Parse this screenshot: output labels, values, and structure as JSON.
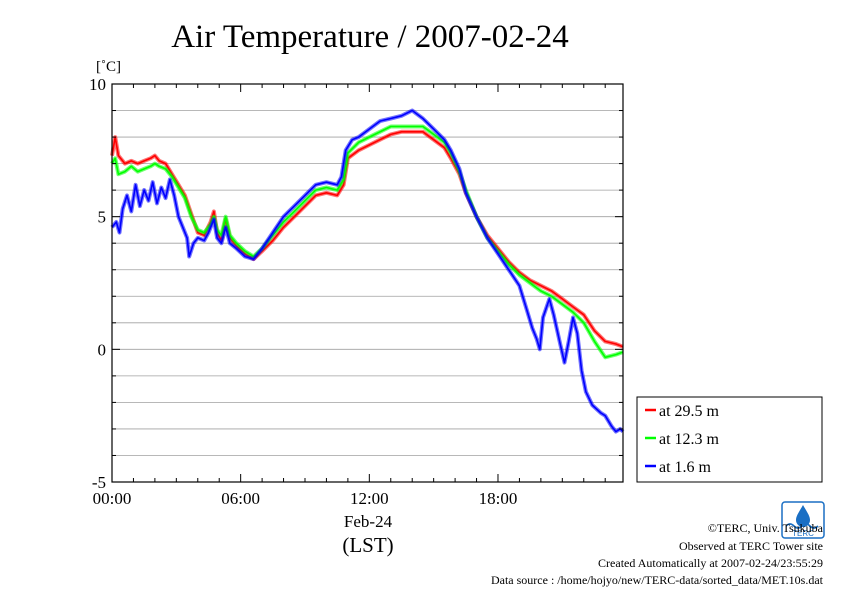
{
  "chart_data": {
    "type": "line",
    "title": "Air Temperature / 2007-02-24",
    "y_unit": "[˚C]",
    "ylim": [
      -5,
      10
    ],
    "y_ticks": [
      {
        "value": 10,
        "label": "10"
      },
      {
        "value": 5,
        "label": "5"
      },
      {
        "value": 0,
        "label": "0"
      },
      {
        "value": -5,
        "label": "-5"
      }
    ],
    "xlim": [
      0,
      23.83
    ],
    "x_ticks": [
      {
        "value": 0,
        "label": "00:00"
      },
      {
        "value": 6,
        "label": "06:00"
      },
      {
        "value": 12,
        "label": "12:00"
      },
      {
        "value": 18,
        "label": "18:00"
      }
    ],
    "x_date_label": "Feb-24",
    "x_tz_label": "(LST)",
    "grid": true,
    "legend_position": "right-bottom-outside",
    "series": [
      {
        "name": "at 29.5 m",
        "color": "#ff0000",
        "points": [
          [
            0,
            7.3
          ],
          [
            0.15,
            8.0
          ],
          [
            0.3,
            7.3
          ],
          [
            0.6,
            7.0
          ],
          [
            0.9,
            7.1
          ],
          [
            1.2,
            7.0
          ],
          [
            1.5,
            7.1
          ],
          [
            1.8,
            7.2
          ],
          [
            2.0,
            7.3
          ],
          [
            2.2,
            7.1
          ],
          [
            2.5,
            7.0
          ],
          [
            2.8,
            6.6
          ],
          [
            3.1,
            6.2
          ],
          [
            3.4,
            5.8
          ],
          [
            3.7,
            5.1
          ],
          [
            4.0,
            4.4
          ],
          [
            4.3,
            4.3
          ],
          [
            4.6,
            4.8
          ],
          [
            4.75,
            5.2
          ],
          [
            4.9,
            4.4
          ],
          [
            5.1,
            4.1
          ],
          [
            5.3,
            4.9
          ],
          [
            5.5,
            4.2
          ],
          [
            5.8,
            3.9
          ],
          [
            6.2,
            3.6
          ],
          [
            6.6,
            3.4
          ],
          [
            7.0,
            3.7
          ],
          [
            7.5,
            4.1
          ],
          [
            8.0,
            4.6
          ],
          [
            8.5,
            5.0
          ],
          [
            9.0,
            5.4
          ],
          [
            9.5,
            5.8
          ],
          [
            10.0,
            5.9
          ],
          [
            10.5,
            5.8
          ],
          [
            10.8,
            6.2
          ],
          [
            11.0,
            7.2
          ],
          [
            11.5,
            7.5
          ],
          [
            12.0,
            7.7
          ],
          [
            12.5,
            7.9
          ],
          [
            13.0,
            8.1
          ],
          [
            13.5,
            8.2
          ],
          [
            14.0,
            8.2
          ],
          [
            14.5,
            8.2
          ],
          [
            15.0,
            7.9
          ],
          [
            15.5,
            7.6
          ],
          [
            15.8,
            7.2
          ],
          [
            16.2,
            6.6
          ],
          [
            16.5,
            5.9
          ],
          [
            17.0,
            5.0
          ],
          [
            17.5,
            4.3
          ],
          [
            18.0,
            3.8
          ],
          [
            18.5,
            3.3
          ],
          [
            19.0,
            2.9
          ],
          [
            19.5,
            2.6
          ],
          [
            20.0,
            2.4
          ],
          [
            20.5,
            2.2
          ],
          [
            21.0,
            1.9
          ],
          [
            21.5,
            1.6
          ],
          [
            22.0,
            1.3
          ],
          [
            22.5,
            0.7
          ],
          [
            23.0,
            0.3
          ],
          [
            23.5,
            0.2
          ],
          [
            23.83,
            0.1
          ]
        ]
      },
      {
        "name": "at 12.3 m",
        "color": "#00ff00",
        "points": [
          [
            0,
            7.0
          ],
          [
            0.15,
            7.2
          ],
          [
            0.3,
            6.6
          ],
          [
            0.6,
            6.7
          ],
          [
            0.9,
            6.9
          ],
          [
            1.2,
            6.7
          ],
          [
            1.5,
            6.8
          ],
          [
            1.8,
            6.9
          ],
          [
            2.0,
            7.0
          ],
          [
            2.2,
            6.9
          ],
          [
            2.5,
            6.8
          ],
          [
            2.8,
            6.5
          ],
          [
            3.1,
            6.1
          ],
          [
            3.4,
            5.7
          ],
          [
            3.7,
            5.0
          ],
          [
            4.0,
            4.5
          ],
          [
            4.3,
            4.4
          ],
          [
            4.6,
            4.7
          ],
          [
            4.75,
            5.0
          ],
          [
            4.9,
            4.5
          ],
          [
            5.1,
            4.3
          ],
          [
            5.3,
            5.0
          ],
          [
            5.5,
            4.3
          ],
          [
            5.8,
            4.0
          ],
          [
            6.2,
            3.7
          ],
          [
            6.6,
            3.5
          ],
          [
            7.0,
            3.8
          ],
          [
            7.5,
            4.3
          ],
          [
            8.0,
            4.8
          ],
          [
            8.5,
            5.2
          ],
          [
            9.0,
            5.6
          ],
          [
            9.5,
            6.0
          ],
          [
            10.0,
            6.1
          ],
          [
            10.5,
            6.0
          ],
          [
            10.8,
            6.4
          ],
          [
            11.0,
            7.4
          ],
          [
            11.5,
            7.8
          ],
          [
            12.0,
            8.0
          ],
          [
            12.5,
            8.2
          ],
          [
            13.0,
            8.4
          ],
          [
            13.5,
            8.4
          ],
          [
            14.0,
            8.4
          ],
          [
            14.5,
            8.4
          ],
          [
            15.0,
            8.1
          ],
          [
            15.5,
            7.8
          ],
          [
            15.8,
            7.4
          ],
          [
            16.2,
            6.7
          ],
          [
            16.5,
            6.0
          ],
          [
            17.0,
            5.0
          ],
          [
            17.5,
            4.2
          ],
          [
            18.0,
            3.7
          ],
          [
            18.5,
            3.2
          ],
          [
            19.0,
            2.8
          ],
          [
            19.5,
            2.5
          ],
          [
            20.0,
            2.2
          ],
          [
            20.5,
            2.0
          ],
          [
            21.0,
            1.7
          ],
          [
            21.5,
            1.4
          ],
          [
            22.0,
            1.0
          ],
          [
            22.5,
            0.3
          ],
          [
            23.0,
            -0.3
          ],
          [
            23.5,
            -0.2
          ],
          [
            23.83,
            -0.1
          ]
        ]
      },
      {
        "name": "at 1.6 m",
        "color": "#0000ff",
        "points": [
          [
            0,
            4.6
          ],
          [
            0.2,
            4.8
          ],
          [
            0.35,
            4.4
          ],
          [
            0.5,
            5.3
          ],
          [
            0.7,
            5.8
          ],
          [
            0.9,
            5.2
          ],
          [
            1.1,
            6.2
          ],
          [
            1.3,
            5.4
          ],
          [
            1.5,
            6.0
          ],
          [
            1.7,
            5.6
          ],
          [
            1.9,
            6.3
          ],
          [
            2.1,
            5.5
          ],
          [
            2.3,
            6.1
          ],
          [
            2.5,
            5.7
          ],
          [
            2.7,
            6.4
          ],
          [
            2.9,
            5.8
          ],
          [
            3.1,
            5.0
          ],
          [
            3.3,
            4.6
          ],
          [
            3.5,
            4.2
          ],
          [
            3.6,
            3.5
          ],
          [
            3.8,
            4.0
          ],
          [
            4.0,
            4.2
          ],
          [
            4.3,
            4.1
          ],
          [
            4.5,
            4.4
          ],
          [
            4.75,
            4.9
          ],
          [
            4.9,
            4.2
          ],
          [
            5.1,
            4.0
          ],
          [
            5.3,
            4.6
          ],
          [
            5.5,
            4.0
          ],
          [
            5.8,
            3.8
          ],
          [
            6.2,
            3.5
          ],
          [
            6.6,
            3.4
          ],
          [
            7.0,
            3.8
          ],
          [
            7.5,
            4.4
          ],
          [
            8.0,
            5.0
          ],
          [
            8.5,
            5.4
          ],
          [
            9.0,
            5.8
          ],
          [
            9.5,
            6.2
          ],
          [
            10.0,
            6.3
          ],
          [
            10.5,
            6.2
          ],
          [
            10.7,
            6.5
          ],
          [
            10.9,
            7.5
          ],
          [
            11.2,
            7.9
          ],
          [
            11.5,
            8.0
          ],
          [
            12.0,
            8.3
          ],
          [
            12.5,
            8.6
          ],
          [
            13.0,
            8.7
          ],
          [
            13.5,
            8.8
          ],
          [
            14.0,
            9.0
          ],
          [
            14.5,
            8.7
          ],
          [
            15.0,
            8.3
          ],
          [
            15.5,
            7.9
          ],
          [
            15.8,
            7.5
          ],
          [
            16.2,
            6.8
          ],
          [
            16.5,
            5.9
          ],
          [
            17.0,
            5.0
          ],
          [
            17.5,
            4.2
          ],
          [
            18.0,
            3.6
          ],
          [
            18.5,
            3.0
          ],
          [
            19.0,
            2.4
          ],
          [
            19.3,
            1.6
          ],
          [
            19.6,
            0.8
          ],
          [
            19.8,
            0.4
          ],
          [
            19.95,
            0.0
          ],
          [
            20.1,
            1.2
          ],
          [
            20.4,
            1.9
          ],
          [
            20.6,
            1.3
          ],
          [
            20.9,
            0.2
          ],
          [
            21.1,
            -0.5
          ],
          [
            21.3,
            0.3
          ],
          [
            21.5,
            1.2
          ],
          [
            21.7,
            0.6
          ],
          [
            21.9,
            -0.8
          ],
          [
            22.1,
            -1.6
          ],
          [
            22.4,
            -2.1
          ],
          [
            22.8,
            -2.4
          ],
          [
            23.0,
            -2.5
          ],
          [
            23.3,
            -2.9
          ],
          [
            23.5,
            -3.1
          ],
          [
            23.7,
            -3.0
          ],
          [
            23.83,
            -3.1
          ]
        ]
      }
    ]
  },
  "footer": {
    "credit": "©TERC, Univ. Tsukuba",
    "site": "Observed at TERC Tower site",
    "created": "Created Automatically at 2007-02-24/23:55:29",
    "source": "Data source : /home/hojyo/new/TERC-data/sorted_data/MET.10s.dat"
  },
  "logo": {
    "text": "TERC",
    "color": "#1a6fc4"
  }
}
